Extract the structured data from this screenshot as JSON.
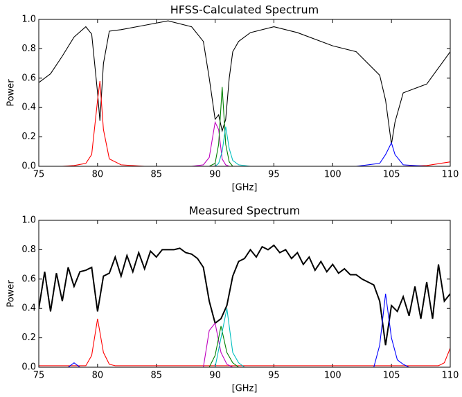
{
  "chart_data": [
    {
      "type": "line",
      "title": "HFSS-Calculated Spectrum",
      "x_label": "[GHz]",
      "y_label": "Power",
      "x": [
        75,
        76,
        77,
        78,
        79,
        79.5,
        80,
        80.2,
        80.5,
        81,
        82,
        84,
        86,
        88,
        89,
        89.5,
        90,
        90.3,
        90.6,
        90.9,
        91.2,
        91.5,
        92,
        93,
        95,
        97,
        100,
        102,
        104,
        104.5,
        105,
        105.3,
        106,
        108,
        110
      ],
      "xlim": [
        75,
        110
      ],
      "xticks": [
        75,
        80,
        85,
        90,
        95,
        100,
        105,
        110
      ],
      "ylim": [
        0,
        1
      ],
      "yticks": [
        {
          "value": 0,
          "label": "0.0"
        },
        0.2,
        0.4,
        0.6,
        0.8,
        {
          "value": 1,
          "label": "1.0"
        }
      ],
      "series": [
        {
          "color": "#000000",
          "values": [
            0.57,
            0.63,
            0.75,
            0.88,
            0.95,
            0.9,
            0.5,
            0.31,
            0.7,
            0.92,
            0.93,
            0.96,
            0.99,
            0.95,
            0.85,
            0.6,
            0.32,
            0.35,
            0.24,
            0.32,
            0.6,
            0.78,
            0.85,
            0.91,
            0.95,
            0.91,
            0.82,
            0.78,
            0.62,
            0.45,
            0.15,
            0.3,
            0.5,
            0.56,
            0.78
          ]
        },
        {
          "color": "#ff0000",
          "values": [
            0,
            0,
            0,
            0.005,
            0.02,
            0.08,
            0.45,
            0.58,
            0.25,
            0.05,
            0.01,
            0,
            0,
            0,
            0,
            0,
            0,
            0,
            0,
            0,
            0,
            0,
            0,
            0,
            0,
            0,
            0,
            0,
            0,
            0,
            0,
            0,
            0,
            0.005,
            0.03
          ]
        },
        {
          "color": "#bf00bf",
          "values": [
            0,
            0,
            0,
            0,
            0,
            0,
            0,
            0,
            0,
            0,
            0,
            0,
            0,
            0,
            0.01,
            0.06,
            0.3,
            0.25,
            0.05,
            0.01,
            0,
            0,
            0,
            0,
            0,
            0,
            0,
            0,
            0,
            0,
            0,
            0,
            0,
            0,
            0
          ]
        },
        {
          "color": "#008000",
          "values": [
            0,
            0,
            0,
            0,
            0,
            0,
            0,
            0,
            0,
            0,
            0,
            0,
            0,
            0,
            0,
            0,
            0.02,
            0.15,
            0.54,
            0.15,
            0.03,
            0,
            0,
            0,
            0,
            0,
            0,
            0,
            0,
            0,
            0,
            0,
            0,
            0,
            0
          ]
        },
        {
          "color": "#00bfbf",
          "values": [
            0,
            0,
            0,
            0,
            0,
            0,
            0,
            0,
            0,
            0,
            0,
            0,
            0,
            0,
            0,
            0,
            0,
            0.02,
            0.1,
            0.27,
            0.12,
            0.04,
            0.01,
            0,
            0,
            0,
            0,
            0,
            0,
            0,
            0,
            0,
            0,
            0,
            0
          ]
        },
        {
          "color": "#0000ff",
          "values": [
            0,
            0,
            0,
            0,
            0,
            0,
            0,
            0,
            0,
            0,
            0,
            0,
            0,
            0,
            0,
            0,
            0,
            0,
            0,
            0,
            0,
            0,
            0,
            0,
            0,
            0,
            0,
            0,
            0.02,
            0.08,
            0.16,
            0.08,
            0.01,
            0,
            0
          ]
        }
      ]
    },
    {
      "type": "line",
      "title": "Measured Spectrum",
      "x_label": "[GHz]",
      "y_label": "Power",
      "x": [
        75,
        75.5,
        76,
        76.5,
        77,
        77.5,
        78,
        78.5,
        79,
        79.5,
        80,
        80.5,
        81,
        81.5,
        82,
        82.5,
        83,
        83.5,
        84,
        84.5,
        85,
        85.5,
        86,
        86.5,
        87,
        87.5,
        88,
        88.5,
        89,
        89.5,
        90,
        90.5,
        91,
        91.5,
        92,
        92.5,
        93,
        93.5,
        94,
        94.5,
        95,
        95.5,
        96,
        96.5,
        97,
        97.5,
        98,
        98.5,
        99,
        99.5,
        100,
        100.5,
        101,
        101.5,
        102,
        102.5,
        103,
        103.5,
        104,
        104.5,
        105,
        105.5,
        106,
        106.5,
        107,
        107.5,
        108,
        108.5,
        109,
        109.5,
        110
      ],
      "xlim": [
        75,
        110
      ],
      "xticks": [
        75,
        80,
        85,
        90,
        95,
        100,
        105,
        110
      ],
      "ylim": [
        0,
        1
      ],
      "yticks": [
        {
          "value": 0,
          "label": "0.0"
        },
        0.2,
        0.4,
        0.6,
        0.8,
        {
          "value": 1,
          "label": "1.0"
        }
      ],
      "series": [
        {
          "color": "#000000",
          "values": [
            0.4,
            0.65,
            0.38,
            0.64,
            0.45,
            0.68,
            0.55,
            0.65,
            0.66,
            0.68,
            0.38,
            0.62,
            0.64,
            0.75,
            0.62,
            0.76,
            0.65,
            0.78,
            0.67,
            0.79,
            0.75,
            0.8,
            0.8,
            0.8,
            0.81,
            0.78,
            0.77,
            0.74,
            0.68,
            0.45,
            0.3,
            0.33,
            0.42,
            0.62,
            0.72,
            0.74,
            0.8,
            0.75,
            0.82,
            0.8,
            0.83,
            0.78,
            0.8,
            0.74,
            0.78,
            0.7,
            0.75,
            0.66,
            0.72,
            0.65,
            0.7,
            0.64,
            0.67,
            0.63,
            0.63,
            0.6,
            0.58,
            0.56,
            0.45,
            0.15,
            0.42,
            0.38,
            0.48,
            0.35,
            0.55,
            0.33,
            0.58,
            0.33,
            0.7,
            0.45,
            0.5
          ]
        },
        {
          "color": "#ff0000",
          "values": [
            0.01,
            0.01,
            0.01,
            0.01,
            0.01,
            0.01,
            0.01,
            0.01,
            0.01,
            0.08,
            0.33,
            0.1,
            0.02,
            0.01,
            0.01,
            0.01,
            0.01,
            0.01,
            0.01,
            0.01,
            0.01,
            0.01,
            0.01,
            0.01,
            0.01,
            0.01,
            0.01,
            0.01,
            0.01,
            0.01,
            0.01,
            0.01,
            0.01,
            0.01,
            0.01,
            0.01,
            0.01,
            0.01,
            0.01,
            0.01,
            0.01,
            0.01,
            0.01,
            0.01,
            0.01,
            0.01,
            0.01,
            0.01,
            0.01,
            0.01,
            0.01,
            0.01,
            0.01,
            0.01,
            0.01,
            0.01,
            0.01,
            0.01,
            0.01,
            0.01,
            0.01,
            0.01,
            0.01,
            0.01,
            0.01,
            0.01,
            0.01,
            0.01,
            0.01,
            0.03,
            0.13
          ]
        },
        {
          "color": "#bf00bf",
          "values": [
            0,
            0,
            0,
            0,
            0,
            0,
            0,
            0,
            0,
            0,
            0,
            0,
            0,
            0,
            0,
            0,
            0,
            0,
            0,
            0,
            0,
            0,
            0,
            0,
            0,
            0,
            0,
            0,
            0,
            0.25,
            0.3,
            0.1,
            0.02,
            0,
            0,
            0,
            0,
            0,
            0,
            0,
            0,
            0,
            0,
            0,
            0,
            0,
            0,
            0,
            0,
            0,
            0,
            0,
            0,
            0,
            0,
            0,
            0,
            0,
            0,
            0,
            0,
            0,
            0,
            0,
            0,
            0,
            0,
            0,
            0,
            0,
            0
          ]
        },
        {
          "color": "#008000",
          "values": [
            0,
            0,
            0,
            0,
            0,
            0,
            0,
            0,
            0,
            0,
            0,
            0,
            0,
            0,
            0,
            0,
            0,
            0,
            0,
            0,
            0,
            0,
            0,
            0,
            0,
            0,
            0,
            0,
            0,
            0,
            0.08,
            0.28,
            0.1,
            0.03,
            0,
            0,
            0,
            0,
            0,
            0,
            0,
            0,
            0,
            0,
            0,
            0,
            0,
            0,
            0,
            0,
            0,
            0,
            0,
            0,
            0,
            0,
            0,
            0,
            0,
            0,
            0,
            0,
            0,
            0,
            0,
            0,
            0,
            0,
            0,
            0,
            0
          ]
        },
        {
          "color": "#00bfbf",
          "values": [
            0,
            0,
            0,
            0,
            0,
            0,
            0,
            0,
            0,
            0,
            0,
            0,
            0,
            0,
            0,
            0,
            0,
            0,
            0,
            0,
            0,
            0,
            0,
            0,
            0,
            0,
            0,
            0,
            0,
            0,
            0,
            0.2,
            0.4,
            0.1,
            0.03,
            0,
            0,
            0,
            0,
            0,
            0,
            0,
            0,
            0,
            0,
            0,
            0,
            0,
            0,
            0,
            0,
            0,
            0,
            0,
            0,
            0,
            0,
            0,
            0,
            0,
            0,
            0,
            0,
            0,
            0,
            0,
            0,
            0,
            0,
            0,
            0
          ]
        },
        {
          "color": "#0000ff",
          "values": [
            0,
            0,
            0,
            0,
            0,
            0,
            0.03,
            0,
            0,
            0,
            0,
            0,
            0,
            0,
            0,
            0,
            0,
            0,
            0,
            0,
            0,
            0,
            0,
            0,
            0,
            0,
            0,
            0,
            0,
            0,
            0,
            0,
            0,
            0,
            0,
            0,
            0,
            0,
            0,
            0,
            0,
            0,
            0,
            0,
            0,
            0,
            0,
            0,
            0,
            0,
            0,
            0,
            0,
            0,
            0,
            0,
            0,
            0,
            0.15,
            0.5,
            0.2,
            0.05,
            0.02,
            0,
            0,
            0,
            0,
            0,
            0,
            0,
            0
          ]
        }
      ]
    }
  ]
}
